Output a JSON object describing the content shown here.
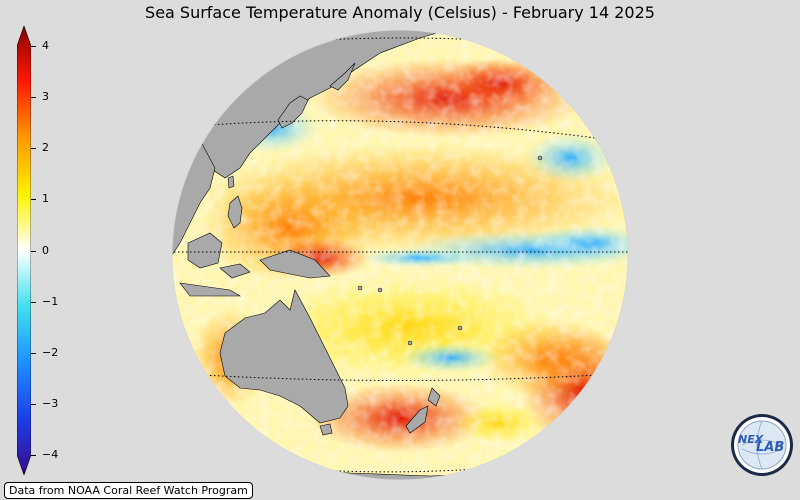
{
  "title": "Sea Surface Temperature Anomaly (Celsius) - February 14 2025",
  "colorbar": {
    "ticks": [
      "4",
      "3",
      "2",
      "1",
      "0",
      "−1",
      "−2",
      "−3",
      "−4"
    ],
    "min": -4,
    "max": 4,
    "colors": [
      "#3a0a8c",
      "#1b3fe8",
      "#1e90ff",
      "#40e0f0",
      "#ffffff",
      "#fff200",
      "#ffa500",
      "#ff3b00",
      "#8b0000"
    ]
  },
  "credit": "Data from NOAA Coral Reef Watch Program",
  "logo": {
    "text": "NEX LAB",
    "part1": "NEX",
    "part2": "LAB"
  }
}
